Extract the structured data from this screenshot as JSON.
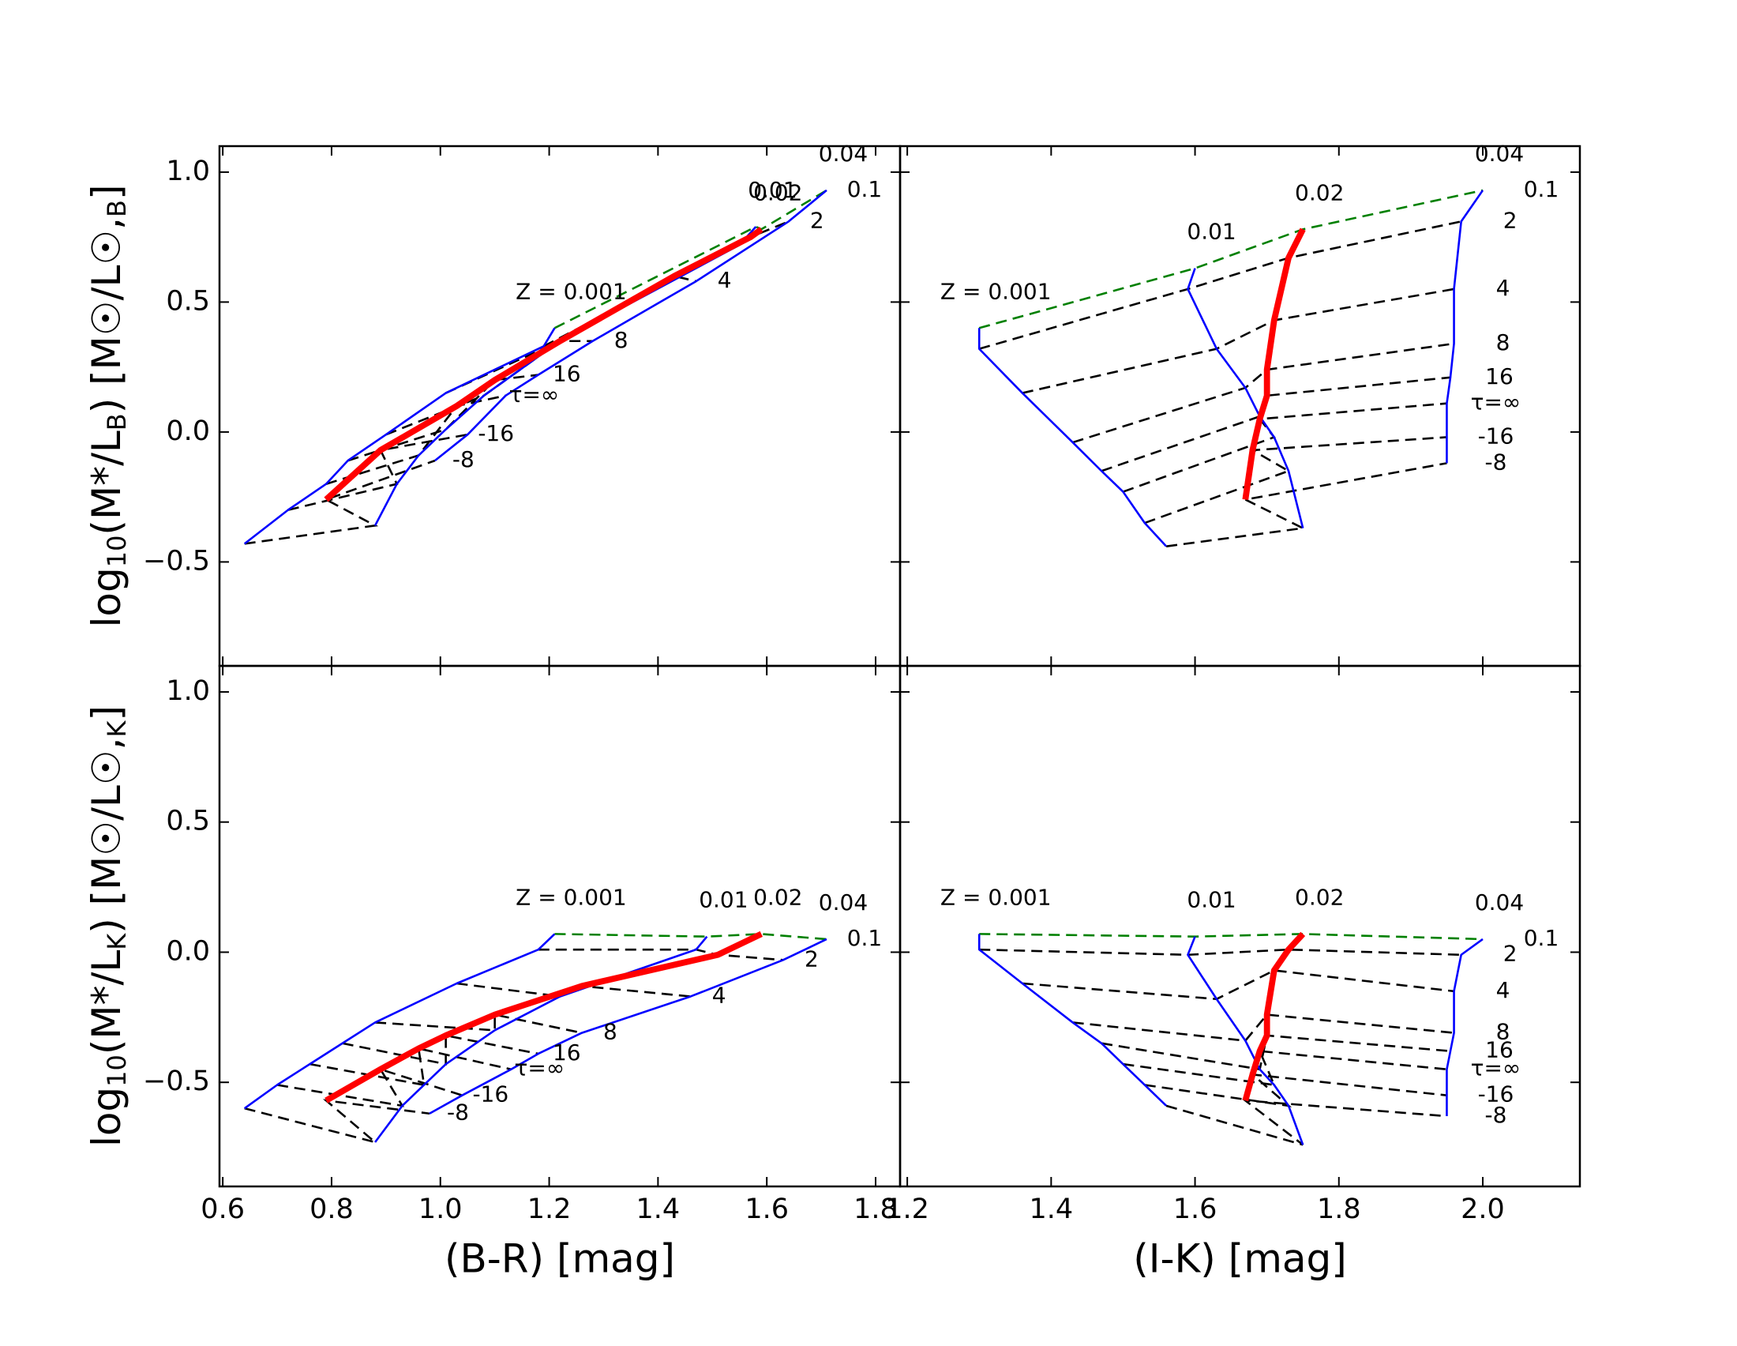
{
  "chart_data": [
    {
      "type": "line",
      "y_label": [
        "log",
        "10",
        "(M*/L",
        "B",
        ")  [M☉/L☉,",
        "B",
        "]"
      ],
      "xlim": [
        0.594,
        1.845
      ],
      "ylim": [
        -0.9,
        1.1
      ],
      "xticks": [
        0.6,
        0.8,
        {
          "value": 1,
          "label": "1.0"
        },
        1.2,
        1.4,
        1.6,
        1.8
      ],
      "yticks": [
        {
          "value": -0.5,
          "label": "−0.5"
        },
        {
          "value": 0,
          "label": "0.0"
        },
        0.5,
        {
          "value": 1,
          "label": "1.0"
        }
      ],
      "tau_labels": [
        "0.1",
        "2",
        "4",
        "8",
        "16",
        "τ=∞",
        "-16",
        "-8"
      ],
      "top_tau_color": "#008000",
      "tau_color": "#000000",
      "series": [
        {
          "name": "Z = 0.001",
          "color": "#0000ff",
          "linewidth": 1,
          "x": [
            1.21,
            1.19,
            1.01,
            0.9,
            0.83,
            0.79,
            0.72,
            0.64
          ],
          "values": [
            0.4,
            0.33,
            0.15,
            -0.01,
            -0.11,
            -0.2,
            -0.3,
            -0.43
          ]
        },
        {
          "name": "0.01",
          "color": "#0000ff",
          "linewidth": 1,
          "x": [
            1.58,
            1.55,
            1.22,
            1.08,
            1.01,
            0.96,
            0.92,
            0.88
          ],
          "values": [
            0.79,
            0.72,
            0.35,
            0.14,
            0.01,
            -0.09,
            -0.2,
            -0.36
          ]
        },
        {
          "name": "0.02",
          "color": "#ff0000",
          "linewidth": 3,
          "x": [
            1.59,
            1.57,
            1.43,
            1.22,
            1.1,
            1.03,
            0.89,
            0.79
          ],
          "values": [
            0.78,
            0.75,
            0.6,
            0.35,
            0.2,
            0.1,
            -0.07,
            -0.26
          ]
        },
        {
          "name": "0.04",
          "color": "#0000ff",
          "linewidth": 1,
          "x": [
            1.71,
            1.64,
            1.47,
            1.28,
            1.18,
            1.12,
            1.05,
            0.99
          ],
          "values": [
            0.93,
            0.81,
            0.58,
            0.35,
            0.22,
            0.14,
            -0.01,
            -0.11
          ]
        }
      ]
    },
    {
      "type": "line",
      "xlim": [
        1.19,
        2.135
      ],
      "ylim": [
        -0.9,
        1.1
      ],
      "xticks": [
        1.2,
        1.4,
        1.6,
        1.8,
        {
          "value": 2,
          "label": "2.0"
        }
      ],
      "yticks": [
        {
          "value": -0.5,
          "label": "−0.5"
        },
        {
          "value": 0,
          "label": "0.0"
        },
        0.5,
        {
          "value": 1,
          "label": "1.0"
        }
      ],
      "tau_labels": [
        "0.1",
        "2",
        "4",
        "8",
        "16",
        "τ=∞",
        "-16",
        "-8"
      ],
      "top_tau_color": "#008000",
      "tau_color": "#000000",
      "series": [
        {
          "name": "Z = 0.001",
          "color": "#0000ff",
          "linewidth": 1,
          "x": [
            1.3,
            1.3,
            1.36,
            1.43,
            1.47,
            1.5,
            1.53,
            1.56
          ],
          "values": [
            0.4,
            0.32,
            0.15,
            -0.04,
            -0.15,
            -0.23,
            -0.35,
            -0.44
          ]
        },
        {
          "name": "0.01",
          "color": "#0000ff",
          "linewidth": 1,
          "x": [
            1.6,
            1.59,
            1.63,
            1.67,
            1.69,
            1.71,
            1.73,
            1.75
          ],
          "values": [
            0.63,
            0.55,
            0.32,
            0.17,
            0.06,
            -0.02,
            -0.15,
            -0.37
          ]
        },
        {
          "name": "0.02",
          "color": "#ff0000",
          "linewidth": 3,
          "x": [
            1.75,
            1.73,
            1.71,
            1.7,
            1.7,
            1.69,
            1.68,
            1.67
          ],
          "values": [
            0.78,
            0.67,
            0.43,
            0.24,
            0.14,
            0.05,
            -0.07,
            -0.26
          ]
        },
        {
          "name": "0.04",
          "color": "#0000ff",
          "linewidth": 1,
          "x": [
            2.0,
            1.97,
            1.96,
            1.96,
            1.955,
            1.95,
            1.95,
            1.95
          ],
          "values": [
            0.93,
            0.81,
            0.55,
            0.34,
            0.21,
            0.11,
            -0.02,
            -0.12
          ]
        }
      ]
    },
    {
      "type": "line",
      "x_label": "(B-R) [mag]",
      "y_label": [
        "log",
        "10",
        "(M*/L",
        "K",
        ")  [M☉/L☉,",
        "K",
        "]"
      ],
      "xlim": [
        0.594,
        1.845
      ],
      "ylim": [
        -0.9,
        1.1
      ],
      "xticks": [
        0.6,
        0.8,
        {
          "value": 1,
          "label": "1.0"
        },
        1.2,
        1.4,
        1.6,
        1.8
      ],
      "yticks": [
        {
          "value": -0.5,
          "label": "−0.5"
        },
        {
          "value": 0,
          "label": "0.0"
        },
        0.5,
        {
          "value": 1,
          "label": "1.0"
        }
      ],
      "tau_labels": [
        "0.1",
        "2",
        "4",
        "8",
        "16",
        "τ=∞",
        "-16",
        "-8"
      ],
      "top_tau_color": "#008000",
      "tau_color": "#000000",
      "series": [
        {
          "name": "Z = 0.001",
          "color": "#0000ff",
          "linewidth": 1,
          "x": [
            1.21,
            1.18,
            1.03,
            0.88,
            0.82,
            0.76,
            0.7,
            0.64
          ],
          "values": [
            0.07,
            0.01,
            -0.12,
            -0.27,
            -0.35,
            -0.43,
            -0.51,
            -0.6
          ]
        },
        {
          "name": "0.01",
          "color": "#0000ff",
          "linewidth": 1,
          "x": [
            1.49,
            1.47,
            1.22,
            1.1,
            1.01,
            0.97,
            0.93,
            0.88
          ],
          "values": [
            0.06,
            0.01,
            -0.17,
            -0.3,
            -0.43,
            -0.51,
            -0.59,
            -0.73
          ]
        },
        {
          "name": "0.02",
          "color": "#ff0000",
          "linewidth": 3,
          "x": [
            1.59,
            1.51,
            1.26,
            1.1,
            1.01,
            0.96,
            0.89,
            0.79
          ],
          "values": [
            0.07,
            -0.01,
            -0.13,
            -0.24,
            -0.32,
            -0.37,
            -0.45,
            -0.57
          ]
        },
        {
          "name": "0.04",
          "color": "#0000ff",
          "linewidth": 1,
          "x": [
            1.71,
            1.63,
            1.46,
            1.26,
            1.18,
            1.13,
            1.04,
            0.98
          ],
          "values": [
            0.05,
            -0.03,
            -0.17,
            -0.31,
            -0.39,
            -0.45,
            -0.55,
            -0.62
          ]
        }
      ]
    },
    {
      "type": "line",
      "x_label": "(I-K) [mag]",
      "xlim": [
        1.19,
        2.135
      ],
      "ylim": [
        -0.9,
        1.1
      ],
      "xticks": [
        1.2,
        1.4,
        1.6,
        1.8,
        {
          "value": 2,
          "label": "2.0"
        }
      ],
      "yticks": [
        {
          "value": -0.5,
          "label": "−0.5"
        },
        {
          "value": 0,
          "label": "0.0"
        },
        0.5,
        {
          "value": 1,
          "label": "1.0"
        }
      ],
      "tau_labels": [
        "0.1",
        "2",
        "4",
        "8",
        "16",
        "τ=∞",
        "-16",
        "-8"
      ],
      "top_tau_color": "#008000",
      "tau_color": "#000000",
      "series": [
        {
          "name": "Z = 0.001",
          "color": "#0000ff",
          "linewidth": 1,
          "x": [
            1.3,
            1.3,
            1.36,
            1.43,
            1.47,
            1.5,
            1.53,
            1.56
          ],
          "values": [
            0.07,
            0.01,
            -0.12,
            -0.27,
            -0.35,
            -0.43,
            -0.51,
            -0.59
          ]
        },
        {
          "name": "0.01",
          "color": "#0000ff",
          "linewidth": 1,
          "x": [
            1.6,
            1.59,
            1.63,
            1.67,
            1.69,
            1.71,
            1.73,
            1.75
          ],
          "values": [
            0.06,
            -0.01,
            -0.18,
            -0.34,
            -0.45,
            -0.51,
            -0.59,
            -0.74
          ]
        },
        {
          "name": "0.02",
          "color": "#ff0000",
          "linewidth": 3,
          "x": [
            1.75,
            1.73,
            1.71,
            1.7,
            1.7,
            1.69,
            1.68,
            1.67
          ],
          "values": [
            0.07,
            0.01,
            -0.07,
            -0.24,
            -0.32,
            -0.38,
            -0.47,
            -0.57
          ]
        },
        {
          "name": "0.04",
          "color": "#0000ff",
          "linewidth": 1,
          "x": [
            2.0,
            1.97,
            1.96,
            1.96,
            1.955,
            1.95,
            1.95,
            1.95
          ],
          "values": [
            0.05,
            -0.01,
            -0.15,
            -0.31,
            -0.38,
            -0.45,
            -0.55,
            -0.63
          ]
        }
      ]
    }
  ]
}
